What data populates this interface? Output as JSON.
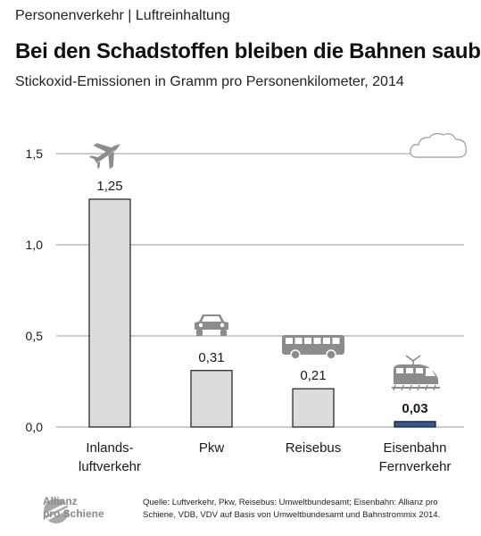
{
  "header": {
    "kicker": "Personenverkehr | Luftreinhaltung",
    "title": "Bei den Schadstoffen bleiben die Bahnen sauber",
    "subtitle": "Stickoxid-Emissionen in Gramm pro Personenkilometer, 2014"
  },
  "chart_data": {
    "type": "bar",
    "categories": [
      [
        "Inlands-",
        "luftverkehr"
      ],
      [
        "Pkw"
      ],
      [
        "Reisebus"
      ],
      [
        "Eisenbahn",
        "Fernverkehr"
      ]
    ],
    "values": [
      1.25,
      0.31,
      0.21,
      0.03
    ],
    "value_labels": [
      "1,25",
      "0,31",
      "0,21",
      "0,03"
    ],
    "yticks": [
      0,
      0.5,
      1.0,
      1.5
    ],
    "ytick_labels": [
      "0,0",
      "0,5",
      "1,0",
      "1,5"
    ],
    "ylim": [
      0,
      1.5
    ],
    "grid": true,
    "colors": {
      "default_bar": "#dcdcdc",
      "highlight_bar": "#2f5a9e",
      "bar_outline": "#1a1a1a",
      "grid": "#9a9a9a",
      "icon": "#8c8c8c"
    },
    "highlight_index": 3,
    "icons": [
      "airplane-icon",
      "car-icon",
      "bus-icon",
      "train-icon"
    ],
    "decoration": "cloud-icon"
  },
  "footer": {
    "logo_line1": "Allianz",
    "logo_line2": "pro Schiene",
    "source": "Quelle: Luftverkehr, Pkw, Reisebus: Umweltbundesamt; Eisenbahn: Allianz pro Schiene, VDB, VDV auf Basis von Umweltbundesamt und Bahnstrommix 2014."
  }
}
